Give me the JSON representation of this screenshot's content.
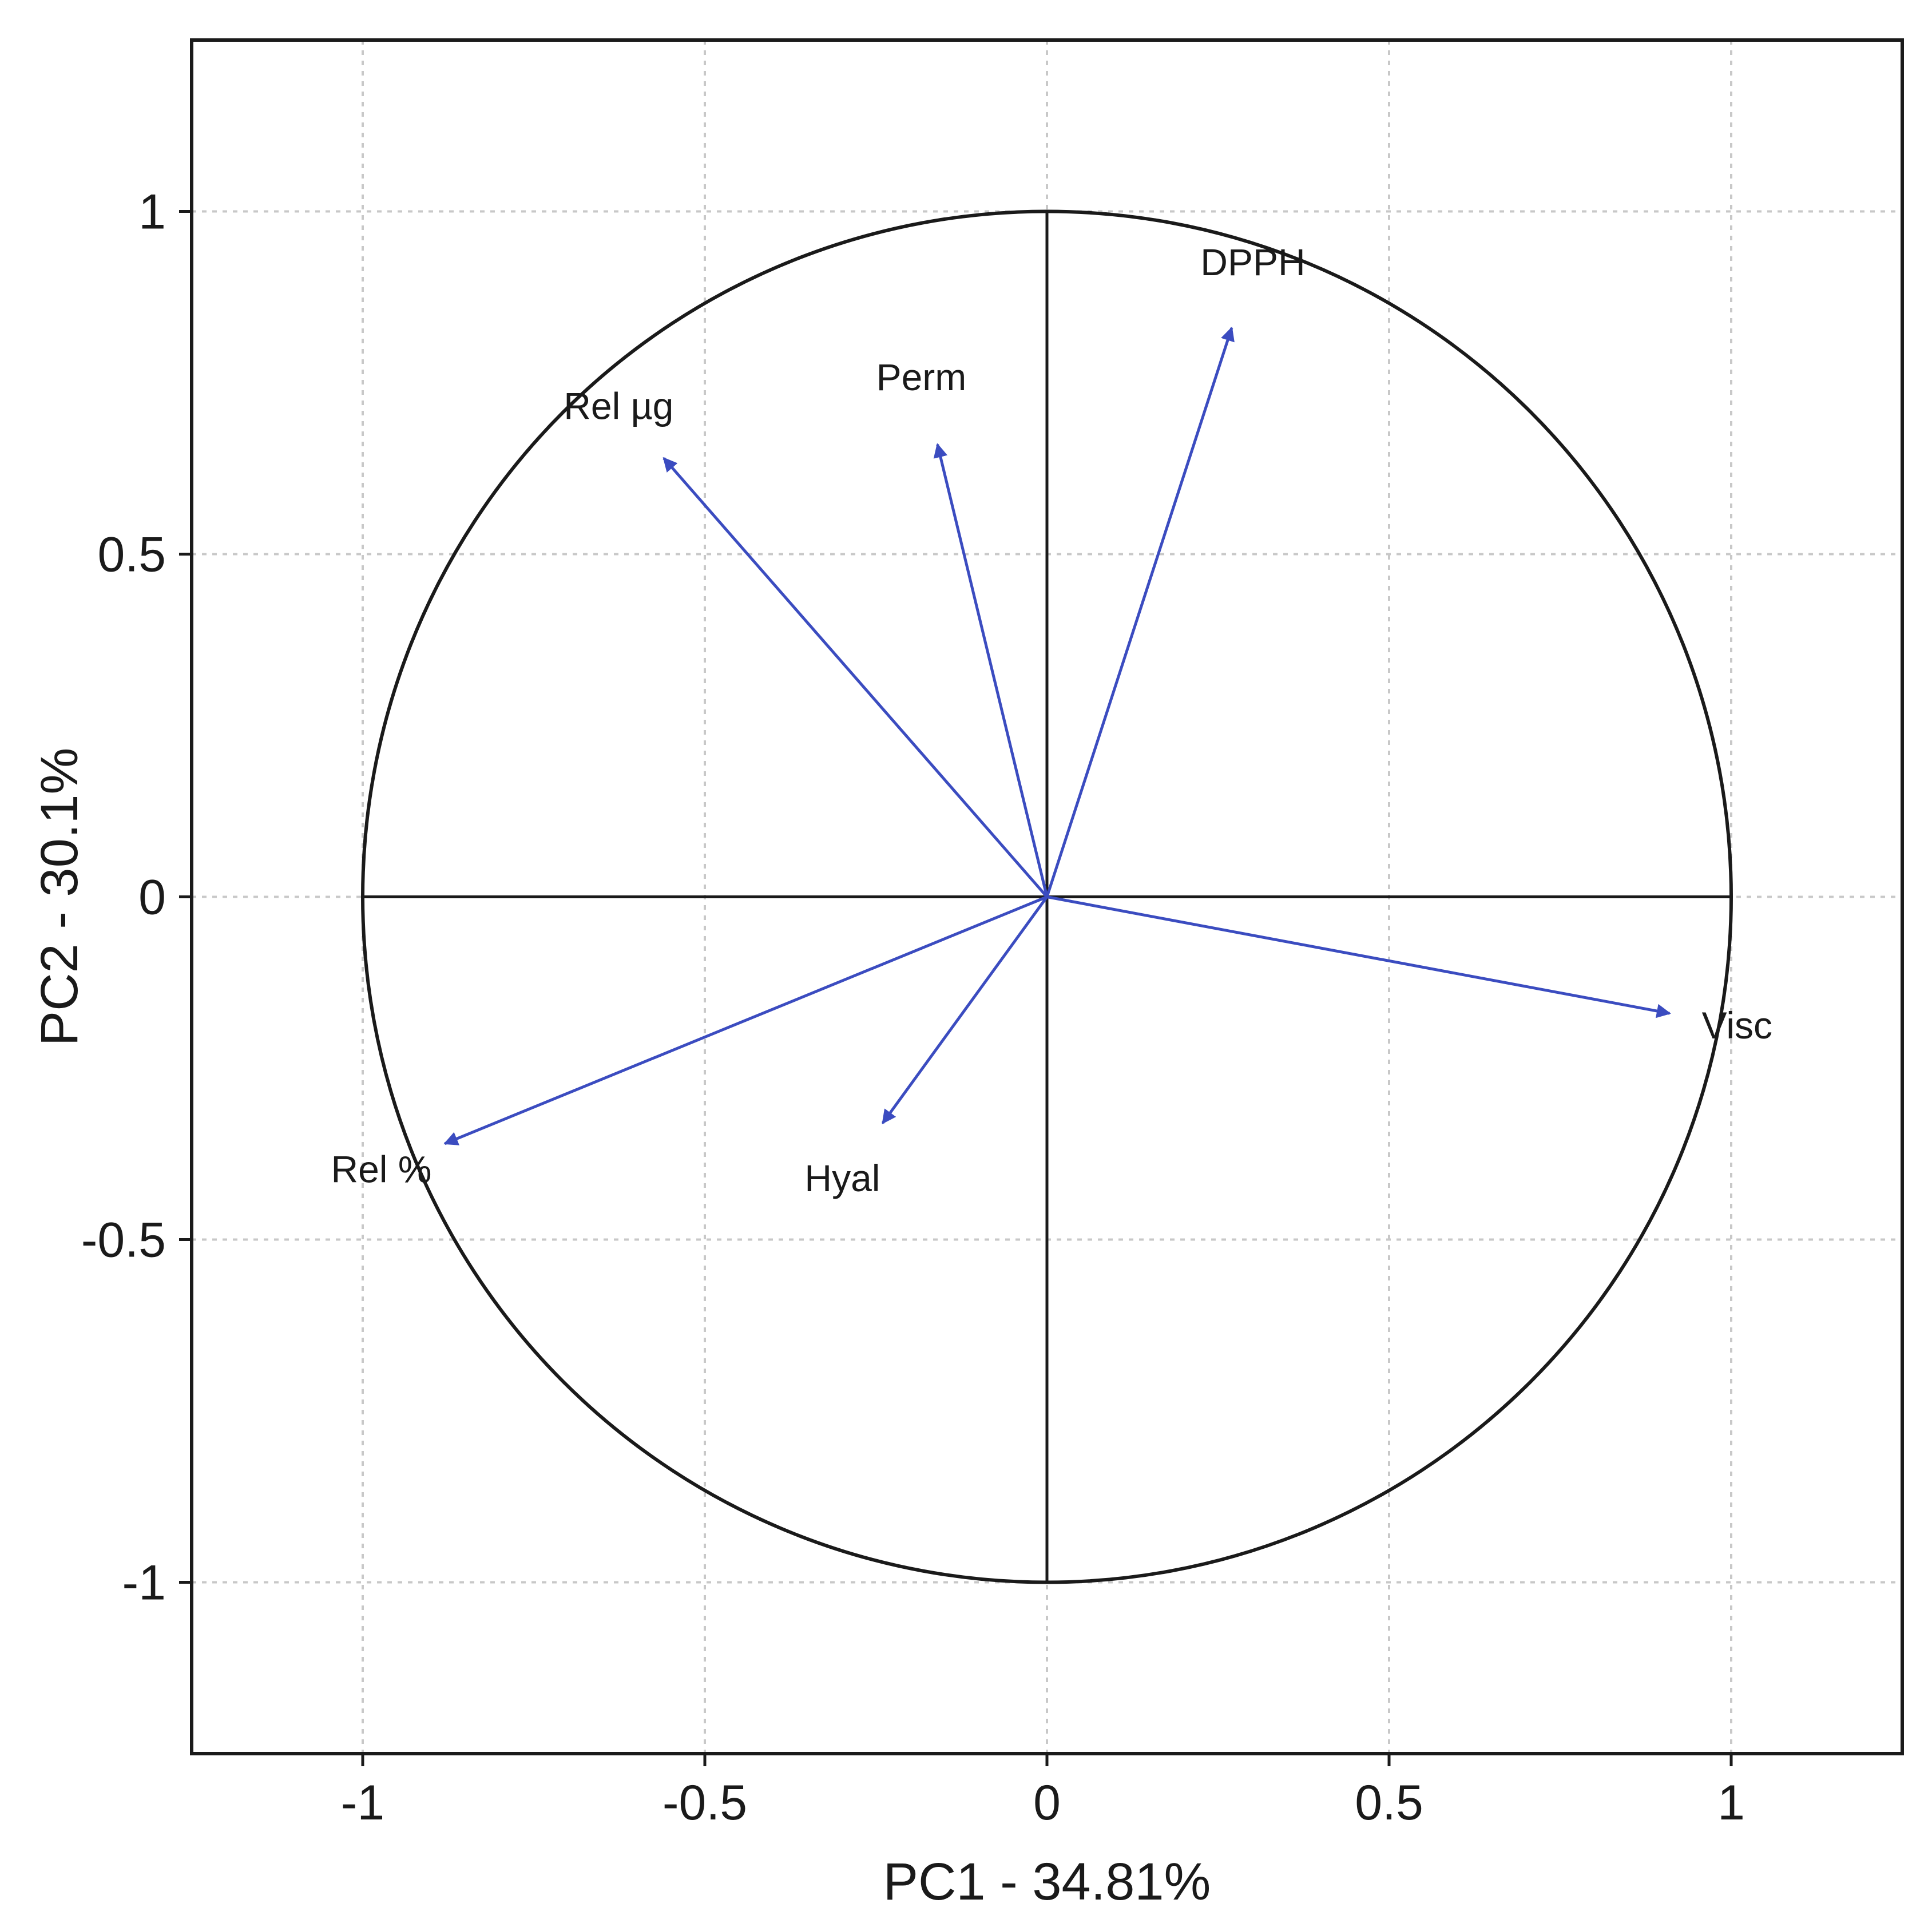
{
  "chart_data": {
    "type": "scatter",
    "subtype": "pca-correlation-circle",
    "title": "",
    "xlabel": "PC1 - 34.81%",
    "ylabel": "PC2 - 30.1%",
    "xlim": [
      -1.25,
      1.25
    ],
    "ylim": [
      -1.25,
      1.25
    ],
    "xticks": [
      -1,
      -0.5,
      0,
      0.5,
      1
    ],
    "yticks": [
      -1,
      -0.5,
      0,
      0.5,
      1
    ],
    "xtick_labels": [
      "-1",
      "-0.5",
      "0",
      "0.5",
      "1"
    ],
    "ytick_labels": [
      "-1",
      "-0.5",
      "0",
      "0.5",
      "1"
    ],
    "grid": true,
    "unit_circle": true,
    "arrow_color": "#3b4cc0",
    "variables": [
      {
        "name": "DPPH",
        "x": 0.27,
        "y": 0.83
      },
      {
        "name": "Perm",
        "x": -0.16,
        "y": 0.66
      },
      {
        "name": "Rel µg",
        "x": -0.56,
        "y": 0.64
      },
      {
        "name": "Visc",
        "x": 0.91,
        "y": -0.17
      },
      {
        "name": "Hyal",
        "x": -0.24,
        "y": -0.33
      },
      {
        "name": "Rel %",
        "x": -0.88,
        "y": -0.36
      }
    ]
  }
}
